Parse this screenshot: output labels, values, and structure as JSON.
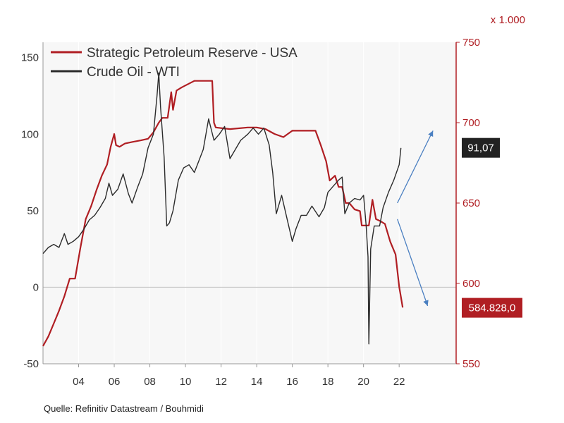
{
  "chart_data": {
    "type": "line",
    "title": "",
    "source": "Quelle: Refinitiv Datastream / Bouhmidi",
    "x_axis": {
      "min": 2002.0,
      "max": 2025.2,
      "tick_values": [
        2004,
        2006,
        2008,
        2010,
        2012,
        2014,
        2016,
        2018,
        2020,
        2022
      ],
      "tick_labels": [
        "04",
        "06",
        "08",
        "10",
        "12",
        "14",
        "16",
        "18",
        "20",
        "22"
      ]
    },
    "y_left": {
      "min": -50,
      "max": 160,
      "ticks": [
        -50,
        0,
        50,
        100,
        150
      ],
      "tick_labels": [
        "-50",
        "0",
        "50",
        "100",
        "150"
      ]
    },
    "y_right": {
      "min": 550,
      "max": 750,
      "unit_label": "x 1.000",
      "ticks": [
        550,
        600,
        650,
        700,
        750
      ],
      "tick_labels": [
        "550",
        "600",
        "650",
        "700",
        "750"
      ]
    },
    "grid": true,
    "legend_position": "top-left",
    "series": [
      {
        "name": "Strategic Petroleum Reserve - USA",
        "axis": "right",
        "color": "#b01e23",
        "points": [
          [
            2002.0,
            561
          ],
          [
            2002.3,
            567
          ],
          [
            2002.6,
            575
          ],
          [
            2002.9,
            583
          ],
          [
            2003.2,
            592
          ],
          [
            2003.5,
            603
          ],
          [
            2003.8,
            603
          ],
          [
            2004.1,
            622
          ],
          [
            2004.4,
            640
          ],
          [
            2004.7,
            648
          ],
          [
            2005.0,
            658
          ],
          [
            2005.3,
            667
          ],
          [
            2005.6,
            674
          ],
          [
            2005.8,
            685
          ],
          [
            2006.0,
            693
          ],
          [
            2006.1,
            686
          ],
          [
            2006.3,
            685
          ],
          [
            2006.6,
            687
          ],
          [
            2007.0,
            688
          ],
          [
            2007.5,
            689
          ],
          [
            2007.9,
            690
          ],
          [
            2008.2,
            694
          ],
          [
            2008.5,
            700
          ],
          [
            2008.7,
            703
          ],
          [
            2009.0,
            703
          ],
          [
            2009.2,
            719
          ],
          [
            2009.3,
            708
          ],
          [
            2009.5,
            720
          ],
          [
            2009.8,
            722
          ],
          [
            2010.5,
            726
          ],
          [
            2011.5,
            726
          ],
          [
            2011.6,
            700
          ],
          [
            2011.7,
            697
          ],
          [
            2012.5,
            696
          ],
          [
            2013.5,
            697
          ],
          [
            2014.0,
            697
          ],
          [
            2014.5,
            696
          ],
          [
            2015.0,
            693
          ],
          [
            2015.5,
            691
          ],
          [
            2016.0,
            695
          ],
          [
            2016.5,
            695
          ],
          [
            2017.3,
            695
          ],
          [
            2017.6,
            686
          ],
          [
            2017.9,
            676
          ],
          [
            2018.1,
            664
          ],
          [
            2018.4,
            667
          ],
          [
            2018.6,
            660
          ],
          [
            2018.8,
            660
          ],
          [
            2019.0,
            650
          ],
          [
            2019.2,
            650
          ],
          [
            2019.5,
            646
          ],
          [
            2019.8,
            645
          ],
          [
            2019.9,
            636
          ],
          [
            2020.3,
            636
          ],
          [
            2020.5,
            652
          ],
          [
            2020.7,
            640
          ],
          [
            2020.9,
            639
          ],
          [
            2021.2,
            637
          ],
          [
            2021.5,
            626
          ],
          [
            2021.8,
            618
          ],
          [
            2022.0,
            598
          ],
          [
            2022.2,
            585
          ]
        ]
      },
      {
        "name": "Crude Oil - WTI",
        "axis": "left",
        "color": "#2b2b2b",
        "points": [
          [
            2002.0,
            22
          ],
          [
            2002.3,
            26
          ],
          [
            2002.6,
            28
          ],
          [
            2002.9,
            26
          ],
          [
            2003.2,
            35
          ],
          [
            2003.4,
            28
          ],
          [
            2003.7,
            30
          ],
          [
            2004.0,
            33
          ],
          [
            2004.3,
            38
          ],
          [
            2004.6,
            44
          ],
          [
            2004.9,
            47
          ],
          [
            2005.2,
            52
          ],
          [
            2005.5,
            58
          ],
          [
            2005.7,
            68
          ],
          [
            2005.9,
            60
          ],
          [
            2006.2,
            64
          ],
          [
            2006.5,
            74
          ],
          [
            2006.8,
            61
          ],
          [
            2007.0,
            55
          ],
          [
            2007.3,
            65
          ],
          [
            2007.6,
            74
          ],
          [
            2007.9,
            91
          ],
          [
            2008.2,
            100
          ],
          [
            2008.4,
            125
          ],
          [
            2008.5,
            140
          ],
          [
            2008.6,
            118
          ],
          [
            2008.8,
            85
          ],
          [
            2008.95,
            40
          ],
          [
            2009.1,
            42
          ],
          [
            2009.3,
            50
          ],
          [
            2009.6,
            70
          ],
          [
            2009.9,
            78
          ],
          [
            2010.2,
            80
          ],
          [
            2010.5,
            75
          ],
          [
            2010.8,
            84
          ],
          [
            2011.0,
            90
          ],
          [
            2011.3,
            110
          ],
          [
            2011.6,
            96
          ],
          [
            2011.9,
            100
          ],
          [
            2012.2,
            105
          ],
          [
            2012.5,
            84
          ],
          [
            2012.8,
            90
          ],
          [
            2013.1,
            96
          ],
          [
            2013.5,
            100
          ],
          [
            2013.8,
            104
          ],
          [
            2014.1,
            100
          ],
          [
            2014.4,
            104
          ],
          [
            2014.7,
            93
          ],
          [
            2014.9,
            75
          ],
          [
            2015.1,
            48
          ],
          [
            2015.4,
            60
          ],
          [
            2015.7,
            45
          ],
          [
            2016.0,
            30
          ],
          [
            2016.2,
            38
          ],
          [
            2016.5,
            47
          ],
          [
            2016.8,
            47
          ],
          [
            2017.1,
            53
          ],
          [
            2017.5,
            46
          ],
          [
            2017.8,
            52
          ],
          [
            2018.0,
            62
          ],
          [
            2018.3,
            66
          ],
          [
            2018.6,
            70
          ],
          [
            2018.8,
            72
          ],
          [
            2018.95,
            48
          ],
          [
            2019.2,
            55
          ],
          [
            2019.5,
            58
          ],
          [
            2019.8,
            57
          ],
          [
            2020.0,
            60
          ],
          [
            2020.15,
            40
          ],
          [
            2020.25,
            20
          ],
          [
            2020.3,
            -37
          ],
          [
            2020.4,
            25
          ],
          [
            2020.6,
            40
          ],
          [
            2020.9,
            40
          ],
          [
            2021.1,
            52
          ],
          [
            2021.4,
            62
          ],
          [
            2021.7,
            70
          ],
          [
            2022.0,
            80
          ],
          [
            2022.1,
            91
          ]
        ]
      }
    ],
    "value_labels": [
      {
        "text": "91,07",
        "series": "Crude Oil - WTI",
        "value": 91.07,
        "color": "#222222"
      },
      {
        "text": "584.828,0",
        "series": "Strategic Petroleum Reserve - USA",
        "value": 584.828,
        "color": "#b01e23"
      }
    ],
    "annotations": [
      {
        "type": "arrow",
        "color": "#4a7fc1",
        "from": [
          2021.9,
          650
        ],
        "to": [
          2023.9,
          695
        ]
      },
      {
        "type": "arrow",
        "color": "#4a7fc1",
        "from": [
          2021.9,
          640
        ],
        "to": [
          2023.6,
          586
        ]
      }
    ]
  }
}
